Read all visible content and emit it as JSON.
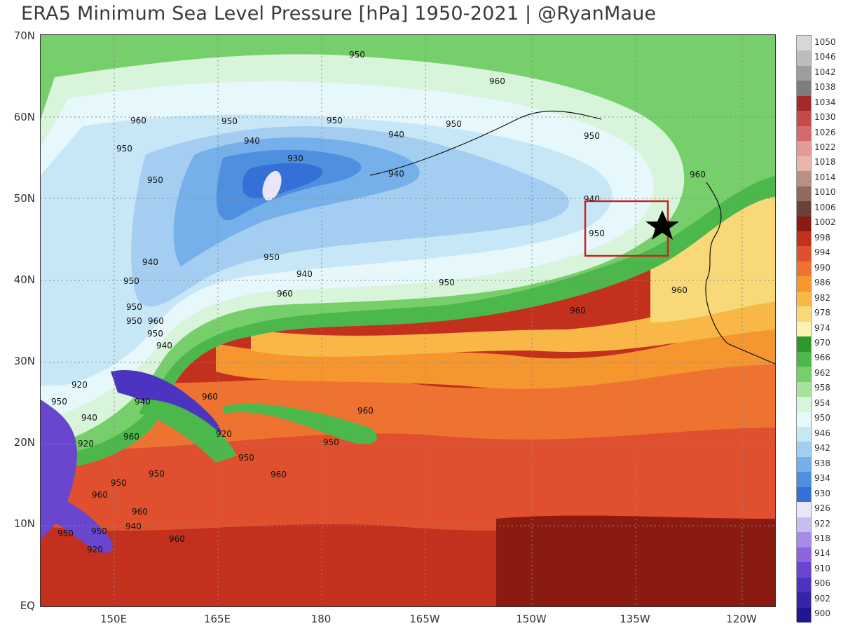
{
  "title": "ERA5 Minimum Sea Level Pressure [hPa] 1950-2021 | @RyanMaue",
  "lat_labels": [
    "70N",
    "60N",
    "50N",
    "40N",
    "30N",
    "20N",
    "10N",
    "EQ"
  ],
  "lon_labels": [
    "150E",
    "165E",
    "180",
    "165W",
    "150W",
    "135W",
    "120W"
  ],
  "colorbar": {
    "labels": [
      "1050",
      "1046",
      "1042",
      "1038",
      "1034",
      "1030",
      "1026",
      "1022",
      "1018",
      "1014",
      "1010",
      "1006",
      "1002",
      "998",
      "994",
      "990",
      "986",
      "982",
      "978",
      "974",
      "970",
      "966",
      "962",
      "958",
      "954",
      "950",
      "946",
      "942",
      "938",
      "934",
      "930",
      "926",
      "922",
      "918",
      "914",
      "910",
      "906",
      "902",
      "900"
    ],
    "colors": [
      "#d7d7d7",
      "#bcbcbc",
      "#9d9d9d",
      "#7d7d7d",
      "#a32a2a",
      "#c54a4a",
      "#d46a6a",
      "#e59a9a",
      "#e8b6a8",
      "#b89086",
      "#8f6a60",
      "#6a4238",
      "#8b1a10",
      "#c3301e",
      "#e0502e",
      "#ef7330",
      "#f5962f",
      "#f8b746",
      "#f9d878",
      "#fbf3b4",
      "#2e9a2e",
      "#4cb84c",
      "#76cf6a",
      "#a8e29a",
      "#d8f4da",
      "#e6f8fc",
      "#c7e7f7",
      "#a3cef1",
      "#76b0ea",
      "#4f8fe0",
      "#3470d6",
      "#e8e6f7",
      "#c7bdf0",
      "#a68ce8",
      "#8d64dd",
      "#6a46cf",
      "#4d34c0",
      "#3324a8",
      "#1f1690"
    ]
  },
  "contour_labels": [
    "950",
    "960",
    "960",
    "950",
    "950",
    "950",
    "940",
    "940",
    "930",
    "950",
    "940",
    "950",
    "950",
    "940",
    "950",
    "960",
    "960",
    "940",
    "950",
    "950",
    "940",
    "950",
    "960",
    "950",
    "960",
    "940",
    "950",
    "960",
    "960",
    "950",
    "920",
    "950",
    "940",
    "920",
    "940",
    "920",
    "960",
    "950",
    "950",
    "960",
    "950",
    "960",
    "960",
    "950",
    "940",
    "950",
    "920",
    "960",
    "950",
    "960"
  ],
  "marker": {
    "type": "star",
    "color": "#000000"
  },
  "box": {
    "color": "#cc2222"
  }
}
